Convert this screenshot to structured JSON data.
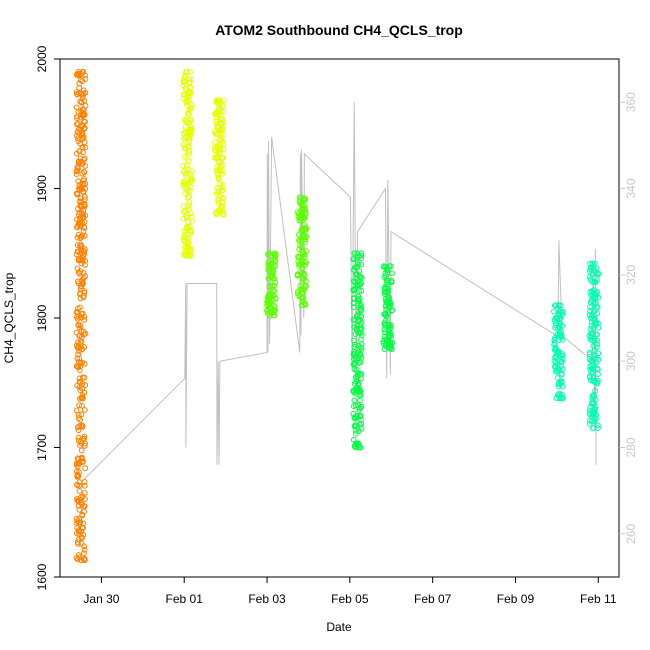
{
  "chart_data": {
    "type": "scatter",
    "title": "ATOM2 Southbound CH4_QCLS_trop",
    "xlabel": "Date",
    "ylabel": "CH4_QCLS_trop",
    "xlim": [
      "2017-01-29T00:00",
      "2017-02-11T12:00"
    ],
    "ylim": [
      1600,
      2000
    ],
    "y2lim": [
      250,
      370
    ],
    "x_ticks": [
      "Jan 30",
      "Feb 01",
      "Feb 03",
      "Feb 05",
      "Feb 07",
      "Feb 09",
      "Feb 11"
    ],
    "x_tick_dates": [
      "2017-01-30",
      "2017-02-01",
      "2017-02-03",
      "2017-02-05",
      "2017-02-07",
      "2017-02-09",
      "2017-02-11"
    ],
    "y_ticks": [
      1600,
      1700,
      1800,
      1900,
      2000
    ],
    "y2_ticks": [
      260,
      280,
      300,
      320,
      340,
      360
    ],
    "grid": false,
    "colors": {
      "flight1": "#ff8000",
      "flight2": "#e5ff00",
      "flight3": "#5cff00",
      "flight4": "#00ff40",
      "flight5": "#00ffb0",
      "secondary_line": "#c0c0c0"
    },
    "series": [
      {
        "color": "#ff8000",
        "clusters": [
          {
            "x": "2017-01-29T12:10",
            "ymin": 1613,
            "ymax": 1990
          }
        ]
      },
      {
        "color": "#e5ff00",
        "clusters": [
          {
            "x": "2017-02-01T02:00",
            "ymin": 1848,
            "ymax": 1990
          },
          {
            "x": "2017-02-01T20:20",
            "ymin": 1880,
            "ymax": 1968
          }
        ]
      },
      {
        "color": "#5cff00",
        "clusters": [
          {
            "x": "2017-02-03T02:30",
            "ymin": 1802,
            "ymax": 1850
          },
          {
            "x": "2017-02-03T20:10",
            "ymin": 1810,
            "ymax": 1893
          }
        ]
      },
      {
        "color": "#00ff40",
        "clusters": [
          {
            "x": "2017-02-05T04:30",
            "ymin": 1700,
            "ymax": 1850
          },
          {
            "x": "2017-02-05T22:00",
            "ymin": 1776,
            "ymax": 1840
          }
        ]
      },
      {
        "color": "#00ffb0",
        "clusters": [
          {
            "x": "2017-02-10T00:50",
            "ymin": 1738,
            "ymax": 1810
          },
          {
            "x": "2017-02-10T21:30",
            "ymin": 1715,
            "ymax": 1842
          }
        ]
      }
    ],
    "secondary_series": {
      "axis": "right",
      "color": "#c0c0c0",
      "points": [
        [
          "2017-01-29T12:00",
          272
        ],
        [
          "2017-01-29T12:25",
          272
        ],
        [
          "2017-02-01T00:20",
          296
        ],
        [
          "2017-02-01T00:50",
          318
        ],
        [
          "2017-02-01T01:00",
          280
        ],
        [
          "2017-02-01T01:40",
          318
        ],
        [
          "2017-02-01T18:50",
          318
        ],
        [
          "2017-02-01T19:00",
          276
        ],
        [
          "2017-02-01T19:40",
          300
        ],
        [
          "2017-02-01T20:10",
          276
        ],
        [
          "2017-02-01T20:40",
          300
        ],
        [
          "2017-02-03T00:00",
          302
        ],
        [
          "2017-02-03T00:10",
          348
        ],
        [
          "2017-02-03T00:30",
          302
        ],
        [
          "2017-02-03T00:50",
          351
        ],
        [
          "2017-02-03T01:30",
          304
        ],
        [
          "2017-02-03T02:40",
          352
        ],
        [
          "2017-02-03T19:00",
          302
        ],
        [
          "2017-02-03T19:20",
          348
        ],
        [
          "2017-02-03T19:40",
          306
        ],
        [
          "2017-02-03T20:00",
          349
        ],
        [
          "2017-02-03T21:20",
          310
        ],
        [
          "2017-02-03T21:40",
          348
        ],
        [
          "2017-02-05T00:20",
          338
        ],
        [
          "2017-02-05T01:20",
          298
        ],
        [
          "2017-02-05T02:30",
          360
        ],
        [
          "2017-02-05T03:40",
          298
        ],
        [
          "2017-02-05T04:30",
          330
        ],
        [
          "2017-02-05T20:40",
          340
        ],
        [
          "2017-02-05T21:20",
          296
        ],
        [
          "2017-02-05T22:00",
          342
        ],
        [
          "2017-02-05T23:30",
          297
        ],
        [
          "2017-02-05T23:50",
          330
        ],
        [
          "2017-02-09T23:30",
          306
        ],
        [
          "2017-02-10T00:40",
          306
        ],
        [
          "2017-02-10T01:10",
          328
        ],
        [
          "2017-02-10T03:00",
          306
        ],
        [
          "2017-02-10T20:40",
          300
        ],
        [
          "2017-02-10T21:00",
          322
        ],
        [
          "2017-02-10T22:00",
          284
        ],
        [
          "2017-02-10T22:20",
          326
        ],
        [
          "2017-02-10T22:40",
          276
        ]
      ]
    }
  }
}
